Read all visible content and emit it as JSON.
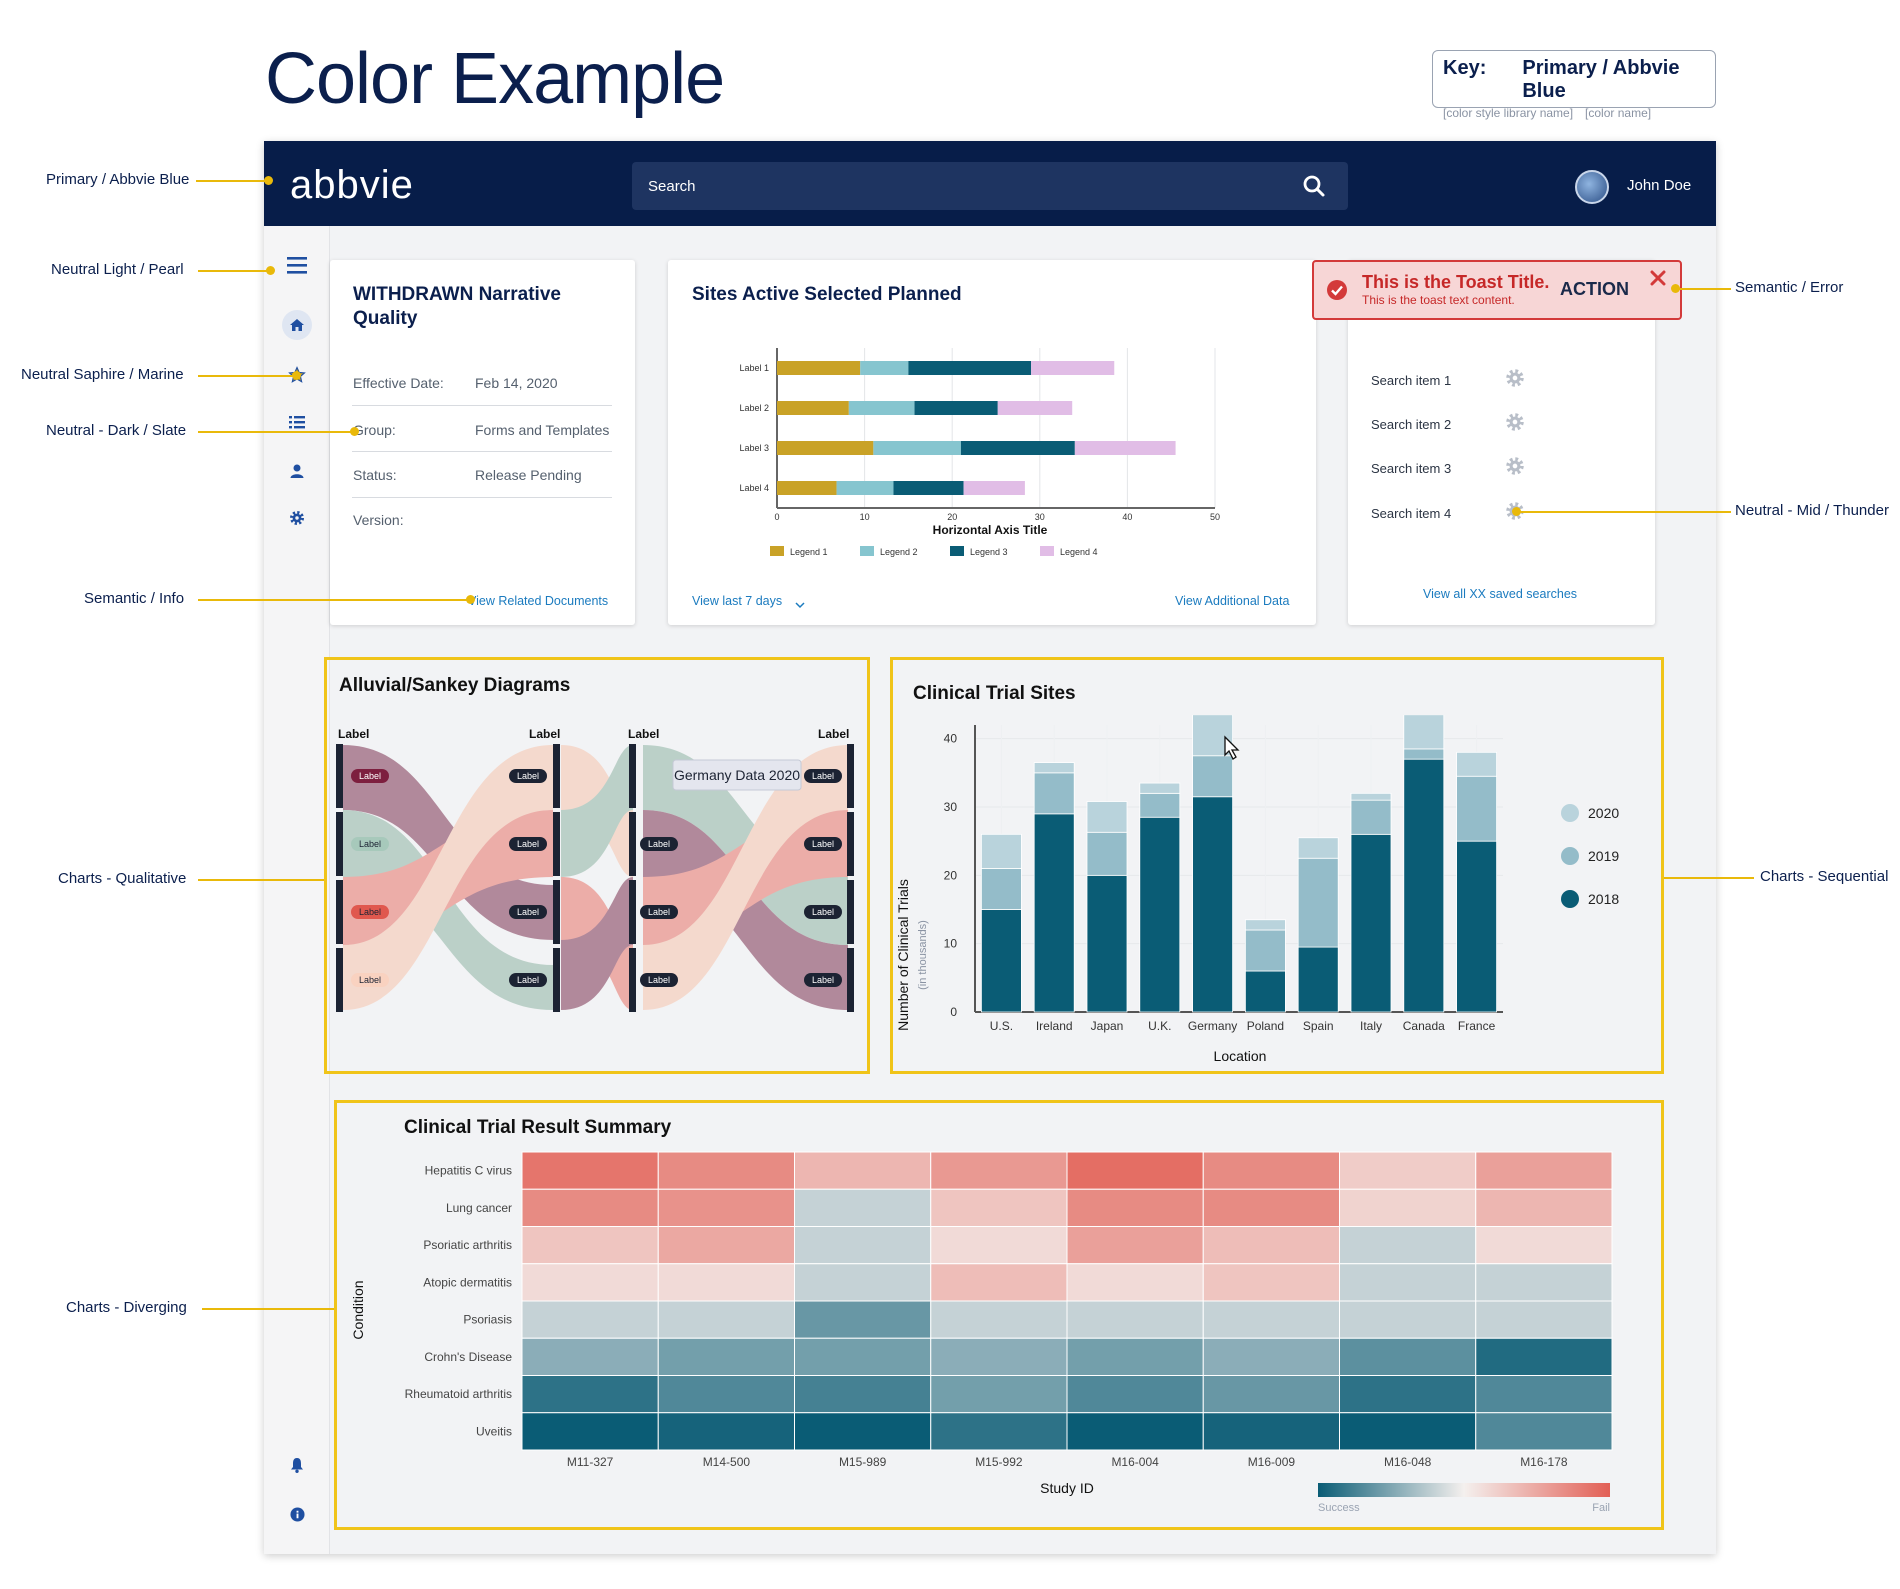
{
  "page": {
    "title": "Color Example"
  },
  "key": {
    "label": "Key:",
    "primary": "Primary / Abbvie Blue",
    "library_hint": "[color style library name]",
    "name_hint": "[color name]"
  },
  "annotations": {
    "primary": "Primary / Abbvie Blue",
    "pearl": "Neutral Light / Pearl",
    "marine": "Neutral Saphire / Marine",
    "slate": "Neutral - Dark / Slate",
    "info": "Semantic / Info",
    "qualitative": "Charts - Qualitative",
    "diverging": "Charts - Diverging",
    "error": "Semantic / Error",
    "thunder": "Neutral - Mid / Thunder",
    "sequential": "Charts - Sequential"
  },
  "header": {
    "logo": "abbvie",
    "search_placeholder": "Search",
    "user_name": "John Doe"
  },
  "sidebar": {
    "icons": [
      "menu-icon",
      "home-icon",
      "star-icon",
      "list-icon",
      "user-icon",
      "gear-icon",
      "bell-icon",
      "info-icon"
    ]
  },
  "doc_card": {
    "title_line1": "WITHDRAWN Narrative",
    "title_line2": "Quality",
    "rows": [
      {
        "label": "Effective Date:",
        "value": "Feb 14, 2020"
      },
      {
        "label": "Group:",
        "value": "Forms and Templates"
      },
      {
        "label": "Status:",
        "value": "Release Pending"
      },
      {
        "label": "Version:",
        "value": ""
      }
    ],
    "link": "View Related Documents"
  },
  "sites_card": {
    "title": "Sites Active Selected Planned",
    "link_left": "View last 7 days",
    "link_right": "View Additional Data"
  },
  "toast": {
    "title": "This is the Toast Title.",
    "content": "This is the toast text content.",
    "action": "ACTION"
  },
  "searches_card": {
    "items": [
      "Search item 1",
      "Search item 2",
      "Search item 3",
      "Search item 4"
    ],
    "link": "View all XX saved searches"
  },
  "sankey": {
    "title": "Alluvial/Sankey Diagrams",
    "column_labels": [
      "Label",
      "Label",
      "Label",
      "Label"
    ],
    "node_label": "Label",
    "tooltip": "Germany Data 2020"
  },
  "heatmap_colors": {
    "success": "#0a5c75",
    "fail": "#e25f55"
  },
  "chart_data": [
    {
      "type": "bar",
      "orientation": "horizontal",
      "stacked": true,
      "categories": [
        "Label 1",
        "Label 2",
        "Label 3",
        "Label 4"
      ],
      "series": [
        {
          "name": "Legend 1",
          "color": "#c9a227",
          "values": [
            9.5,
            8.2,
            11,
            6.8
          ]
        },
        {
          "name": "Legend 2",
          "color": "#86c5cf",
          "values": [
            5.5,
            7.5,
            10,
            6.5
          ]
        },
        {
          "name": "Legend 3",
          "color": "#0a5c75",
          "values": [
            14,
            9.5,
            13,
            8
          ]
        },
        {
          "name": "Legend 4",
          "color": "#e1bde6",
          "values": [
            9.5,
            8.5,
            11.5,
            7
          ]
        }
      ],
      "xlabel": "Horizontal Axis Title",
      "xlim": [
        0,
        50
      ],
      "xticks": [
        0,
        10,
        20,
        30,
        40,
        50
      ],
      "grid": true,
      "legend": "bottom"
    },
    {
      "type": "bar",
      "stacked": true,
      "title": "Clinical Trial Sites",
      "categories": [
        "U.S.",
        "Ireland",
        "Japan",
        "U.K.",
        "Germany",
        "Poland",
        "Spain",
        "Italy",
        "Canada",
        "France"
      ],
      "series": [
        {
          "name": "2018",
          "color": "#0a5c75",
          "values": [
            15,
            29,
            20,
            28.5,
            31.5,
            6,
            9.5,
            26,
            37,
            25
          ]
        },
        {
          "name": "2019",
          "color": "#94bcc9",
          "values": [
            6,
            6,
            6.3,
            3.5,
            6,
            6,
            13,
            5,
            1.5,
            9.5
          ]
        },
        {
          "name": "2020",
          "color": "#b9d3dc",
          "values": [
            5,
            1.5,
            4.5,
            1.5,
            6,
            1.5,
            3,
            1,
            5,
            3.5
          ]
        }
      ],
      "xlabel": "Location",
      "ylabel": "Number of Clinical Trials",
      "ylabel_sub": "(in thousands)",
      "ylim": [
        0,
        42
      ],
      "yticks": [
        0,
        10,
        20,
        30,
        40
      ],
      "grid": true,
      "legend": "right"
    },
    {
      "type": "heatmap",
      "title": "Clinical Trial Result Summary",
      "x": [
        "M11-327",
        "M14-500",
        "M15-989",
        "M15-992",
        "M16-004",
        "M16-009",
        "M16-048",
        "M16-178"
      ],
      "y": [
        "Hepatitis C virus",
        "Lung cancer",
        "Psoriatic arthritis",
        "Atopic dermatitis",
        "Psoriasis",
        "Crohn's Disease",
        "Rheumatoid arthritis",
        "Uveitis"
      ],
      "values": [
        [
          0.85,
          0.7,
          0.4,
          0.6,
          0.9,
          0.7,
          0.25,
          0.55
        ],
        [
          0.7,
          0.65,
          -0.2,
          0.3,
          0.7,
          0.7,
          0.2,
          0.4
        ],
        [
          0.3,
          0.5,
          -0.2,
          0.15,
          0.55,
          0.35,
          -0.2,
          0.15
        ],
        [
          0.15,
          0.15,
          -0.2,
          0.35,
          0.15,
          0.3,
          -0.2,
          -0.2
        ],
        [
          -0.2,
          -0.2,
          -0.6,
          -0.2,
          -0.2,
          -0.2,
          -0.2,
          -0.2
        ],
        [
          -0.45,
          -0.55,
          -0.55,
          -0.45,
          -0.55,
          -0.45,
          -0.65,
          -0.9
        ],
        [
          -0.85,
          -0.7,
          -0.75,
          -0.55,
          -0.7,
          -0.6,
          -0.85,
          -0.7
        ],
        [
          -1,
          -0.95,
          -1,
          -0.85,
          -1,
          -0.95,
          -1,
          -0.7
        ]
      ],
      "xlabel": "Study ID",
      "ylabel": "Condition",
      "scale_labels": [
        "Success",
        "Fail"
      ],
      "vlim": [
        -1,
        1
      ]
    }
  ]
}
